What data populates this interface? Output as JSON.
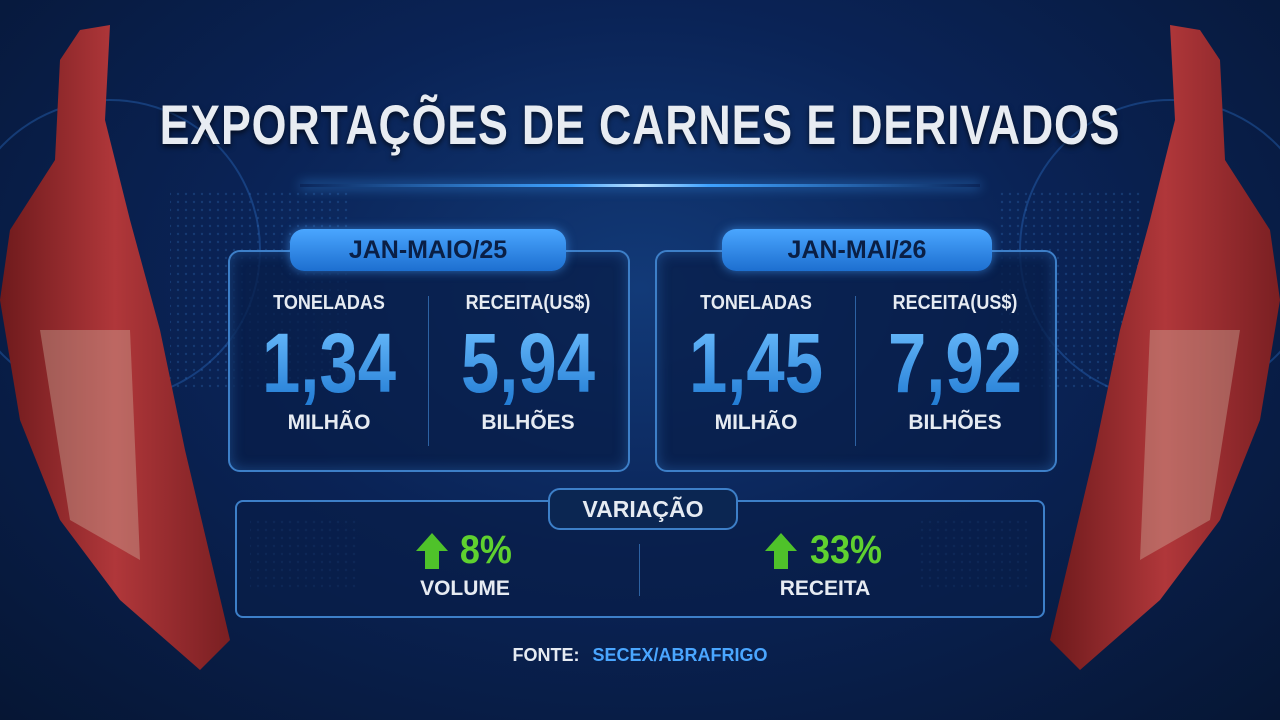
{
  "title": "EXPORTAÇÕES DE CARNES E DERIVADOS",
  "periods": [
    {
      "label": "JAN-MAIO/25",
      "metrics": [
        {
          "label": "TONELADAS",
          "value": "1,34",
          "unit": "MILHÃO"
        },
        {
          "label": "RECEITA(US$)",
          "value": "5,94",
          "unit": "BILHÕES"
        }
      ]
    },
    {
      "label": "JAN-MAI/26",
      "metrics": [
        {
          "label": "TONELADAS",
          "value": "1,45",
          "unit": "MILHÃO"
        },
        {
          "label": "RECEITA(US$)",
          "value": "7,92",
          "unit": "BILHÕES"
        }
      ]
    }
  ],
  "variation": {
    "title": "VARIAÇÃO",
    "items": [
      {
        "value": "8%",
        "label": "VOLUME"
      },
      {
        "value": "33%",
        "label": "RECEITA"
      }
    ]
  },
  "source": {
    "label": "FONTE:",
    "value": "SECEX/ABRAFRIGO"
  }
}
